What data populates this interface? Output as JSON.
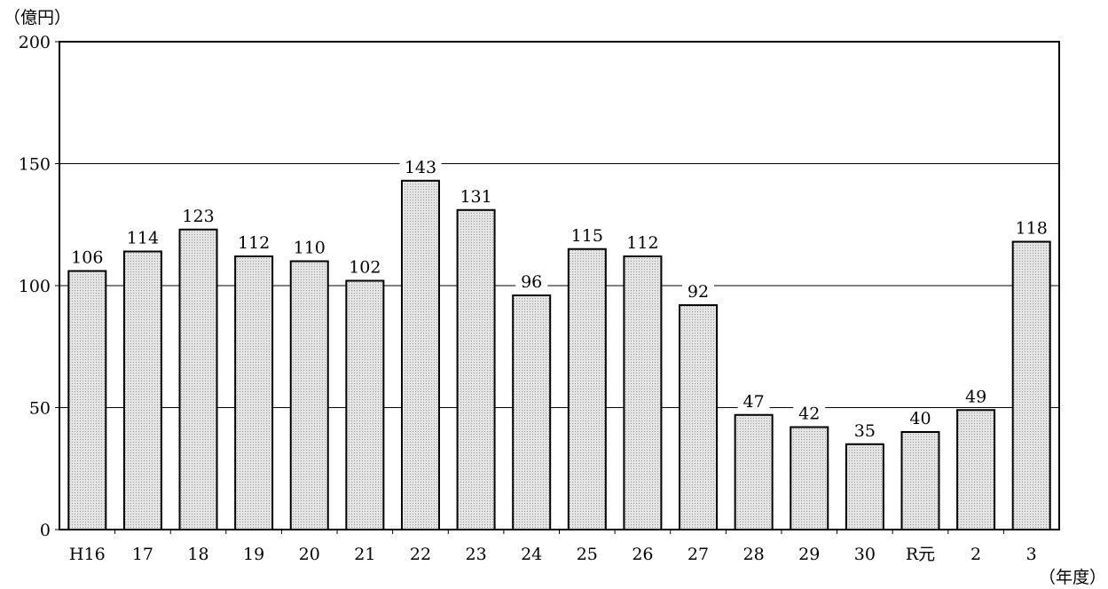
{
  "chart_data": {
    "type": "bar",
    "ylabel_unit": "（億円）",
    "xlabel_unit": "（年度）",
    "categories": [
      "H16",
      "17",
      "18",
      "19",
      "20",
      "21",
      "22",
      "23",
      "24",
      "25",
      "26",
      "27",
      "28",
      "29",
      "30",
      "R元",
      "2",
      "3"
    ],
    "values": [
      106,
      114,
      123,
      112,
      110,
      102,
      143,
      131,
      96,
      115,
      112,
      92,
      47,
      42,
      35,
      40,
      49,
      118
    ],
    "ylim": [
      0,
      200
    ],
    "yticks": [
      0,
      50,
      100,
      150,
      200
    ],
    "grid": true,
    "gridlines": [
      50,
      100,
      150
    ],
    "legend": "none",
    "bar_fill": "#e4e4e4",
    "bar_dot": "#9a9a9a",
    "bar_stroke": "#000000"
  }
}
